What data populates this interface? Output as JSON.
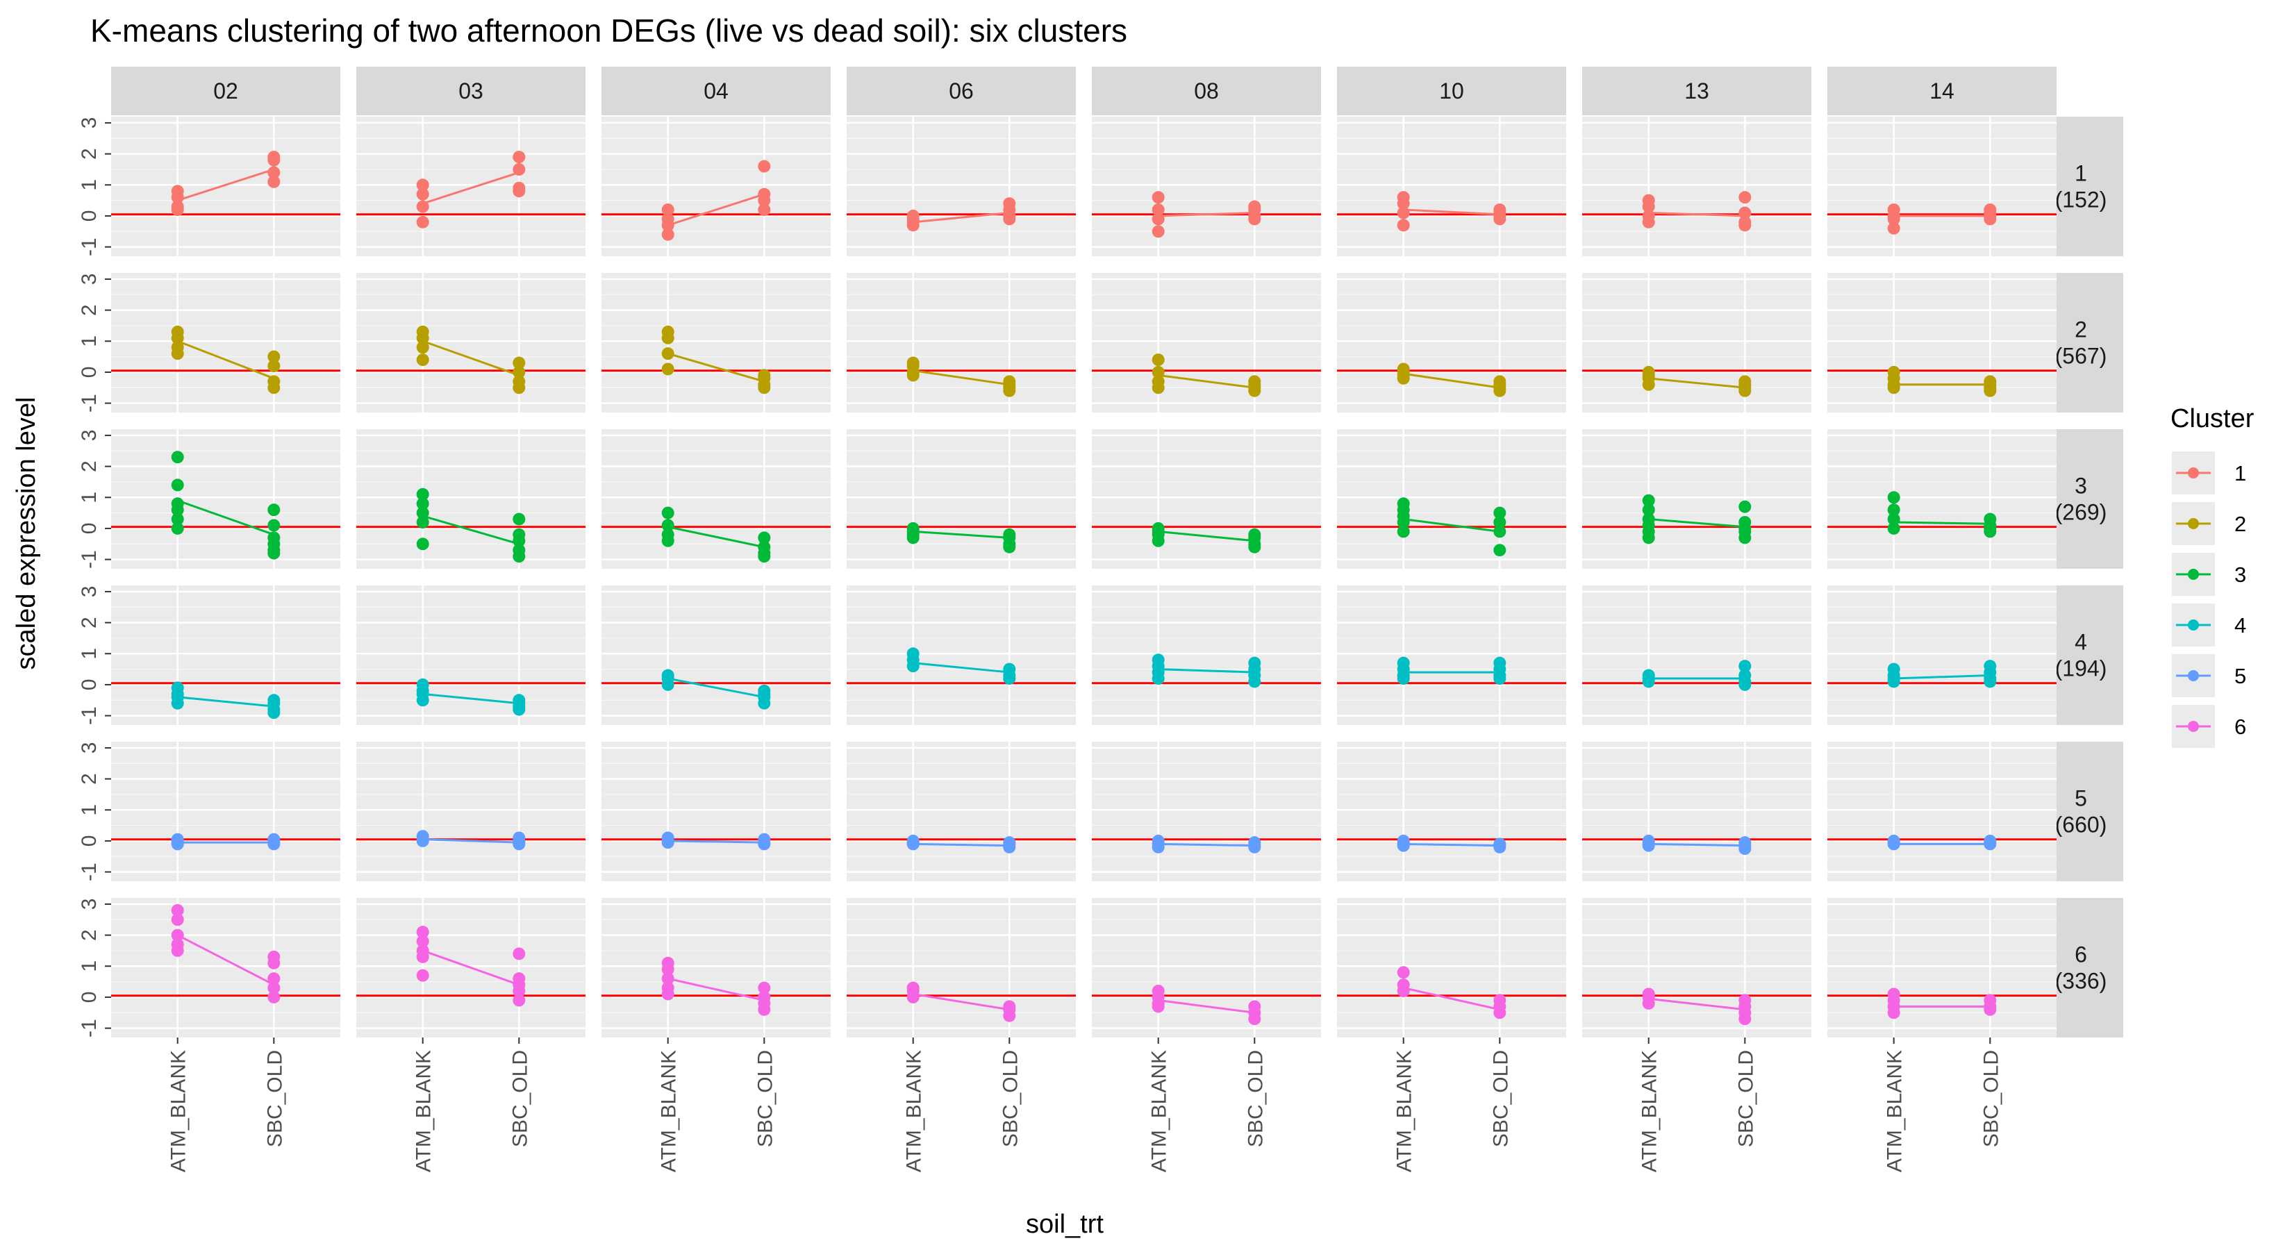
{
  "chart_data": {
    "type": "line",
    "title": "K-means clustering of two afternoon DEGs (live vs dead soil): six clusters",
    "xlabel": "soil_trt",
    "ylabel": "scaled expression level",
    "x_categories": [
      "ATM_BLANK",
      "SBC_OLD"
    ],
    "y_ticks": [
      -1,
      0,
      1,
      2,
      3
    ],
    "ylim": [
      -1.3,
      3.2
    ],
    "reference_line": {
      "y": 0.05,
      "color": "#ff0000"
    },
    "grid": true,
    "legend_position": "right",
    "column_facets": [
      "02",
      "03",
      "04",
      "06",
      "08",
      "10",
      "13",
      "14"
    ],
    "row_facets": [
      {
        "label": "1",
        "count": "(152)"
      },
      {
        "label": "2",
        "count": "(567)"
      },
      {
        "label": "3",
        "count": "(269)"
      },
      {
        "label": "4",
        "count": "(194)"
      },
      {
        "label": "5",
        "count": "(660)"
      },
      {
        "label": "6",
        "count": "(336)"
      }
    ],
    "legend": {
      "title": "Cluster",
      "items": [
        {
          "label": "1",
          "color": "#F8766D"
        },
        {
          "label": "2",
          "color": "#B79F00"
        },
        {
          "label": "3",
          "color": "#00BA38"
        },
        {
          "label": "4",
          "color": "#00BFC4"
        },
        {
          "label": "5",
          "color": "#619CFF"
        },
        {
          "label": "6",
          "color": "#F564E3"
        }
      ]
    },
    "cluster_means": [
      [
        [
          0.5,
          1.5
        ],
        [
          0.4,
          1.4
        ],
        [
          -0.3,
          0.7
        ],
        [
          -0.2,
          0.1
        ],
        [
          0.0,
          0.1
        ],
        [
          0.2,
          0.05
        ],
        [
          0.1,
          0.0
        ],
        [
          0.0,
          0.0
        ]
      ],
      [
        [
          1.0,
          -0.2
        ],
        [
          1.0,
          -0.1
        ],
        [
          0.6,
          -0.3
        ],
        [
          0.05,
          -0.4
        ],
        [
          -0.1,
          -0.5
        ],
        [
          -0.05,
          -0.5
        ],
        [
          -0.2,
          -0.5
        ],
        [
          -0.4,
          -0.4
        ]
      ],
      [
        [
          0.9,
          -0.2
        ],
        [
          0.4,
          -0.5
        ],
        [
          0.05,
          -0.6
        ],
        [
          -0.1,
          -0.3
        ],
        [
          -0.1,
          -0.4
        ],
        [
          0.3,
          -0.1
        ],
        [
          0.3,
          0.05
        ],
        [
          0.2,
          0.15
        ]
      ],
      [
        [
          -0.4,
          -0.7
        ],
        [
          -0.3,
          -0.6
        ],
        [
          0.2,
          -0.4
        ],
        [
          0.7,
          0.4
        ],
        [
          0.5,
          0.4
        ],
        [
          0.4,
          0.4
        ],
        [
          0.2,
          0.2
        ],
        [
          0.2,
          0.3
        ]
      ],
      [
        [
          -0.05,
          -0.05
        ],
        [
          0.05,
          -0.05
        ],
        [
          0.0,
          -0.05
        ],
        [
          -0.1,
          -0.15
        ],
        [
          -0.1,
          -0.15
        ],
        [
          -0.1,
          -0.15
        ],
        [
          -0.1,
          -0.15
        ],
        [
          -0.1,
          -0.1
        ]
      ],
      [
        [
          2.0,
          0.4
        ],
        [
          1.5,
          0.4
        ],
        [
          0.6,
          -0.1
        ],
        [
          0.1,
          -0.4
        ],
        [
          -0.1,
          -0.5
        ],
        [
          0.3,
          -0.4
        ],
        [
          -0.05,
          -0.4
        ],
        [
          -0.3,
          -0.3
        ]
      ]
    ],
    "cluster_points": [
      [
        [
          [
            0.8,
            0.6,
            0.3,
            0.2
          ],
          [
            1.9,
            1.8,
            1.4,
            1.1
          ]
        ],
        [
          [
            1.0,
            0.7,
            0.3,
            -0.2
          ],
          [
            1.9,
            1.5,
            0.9,
            0.8
          ]
        ],
        [
          [
            0.2,
            -0.1,
            -0.3,
            -0.6
          ],
          [
            1.6,
            0.7,
            0.5,
            0.2
          ]
        ],
        [
          [
            0.0,
            -0.1,
            -0.2,
            -0.3
          ],
          [
            0.4,
            0.2,
            0.0,
            -0.1
          ]
        ],
        [
          [
            0.6,
            0.2,
            -0.1,
            -0.5
          ],
          [
            0.3,
            0.2,
            0.0,
            -0.1
          ]
        ],
        [
          [
            0.6,
            0.4,
            0.1,
            -0.3
          ],
          [
            0.2,
            0.1,
            0.0,
            -0.1
          ]
        ],
        [
          [
            0.5,
            0.3,
            0.0,
            -0.2
          ],
          [
            0.6,
            0.1,
            -0.2,
            -0.3
          ]
        ],
        [
          [
            0.2,
            0.0,
            -0.1,
            -0.4
          ],
          [
            0.2,
            0.1,
            0.0,
            -0.1
          ]
        ]
      ],
      [
        [
          [
            1.3,
            1.1,
            0.8,
            0.6
          ],
          [
            0.5,
            0.2,
            -0.3,
            -0.5
          ]
        ],
        [
          [
            1.3,
            1.1,
            0.8,
            0.4
          ],
          [
            0.3,
            0.0,
            -0.3,
            -0.5
          ]
        ],
        [
          [
            1.3,
            1.1,
            0.6,
            0.1
          ],
          [
            -0.1,
            -0.2,
            -0.4,
            -0.5
          ]
        ],
        [
          [
            0.3,
            0.2,
            0.0,
            -0.1
          ],
          [
            -0.3,
            -0.4,
            -0.5,
            -0.6
          ]
        ],
        [
          [
            0.4,
            0.0,
            -0.3,
            -0.5
          ],
          [
            -0.3,
            -0.4,
            -0.5,
            -0.6
          ]
        ],
        [
          [
            0.1,
            0.0,
            -0.1,
            -0.2
          ],
          [
            -0.3,
            -0.4,
            -0.5,
            -0.6
          ]
        ],
        [
          [
            0.0,
            -0.1,
            -0.2,
            -0.4
          ],
          [
            -0.3,
            -0.4,
            -0.5,
            -0.6
          ]
        ],
        [
          [
            0.0,
            -0.2,
            -0.4,
            -0.5
          ],
          [
            -0.3,
            -0.4,
            -0.5,
            -0.6
          ]
        ]
      ],
      [
        [
          [
            2.3,
            1.4,
            0.8,
            0.6,
            0.3,
            0.0
          ],
          [
            0.6,
            0.1,
            -0.3,
            -0.5,
            -0.7,
            -0.8
          ]
        ],
        [
          [
            1.1,
            0.8,
            0.5,
            0.2,
            -0.5
          ],
          [
            0.3,
            -0.2,
            -0.4,
            -0.7,
            -0.9
          ]
        ],
        [
          [
            0.5,
            0.1,
            -0.2,
            -0.4
          ],
          [
            -0.3,
            -0.6,
            -0.8,
            -0.9
          ]
        ],
        [
          [
            0.0,
            -0.1,
            -0.2,
            -0.3
          ],
          [
            -0.2,
            -0.3,
            -0.5,
            -0.6
          ]
        ],
        [
          [
            0.0,
            -0.1,
            -0.2,
            -0.4
          ],
          [
            -0.2,
            -0.3,
            -0.5,
            -0.6
          ]
        ],
        [
          [
            0.8,
            0.6,
            0.4,
            0.2,
            -0.1
          ],
          [
            0.5,
            0.2,
            -0.1,
            -0.7
          ]
        ],
        [
          [
            0.9,
            0.6,
            0.3,
            0.1,
            -0.1,
            -0.3
          ],
          [
            0.7,
            0.2,
            0.0,
            -0.1,
            -0.3
          ]
        ],
        [
          [
            1.0,
            0.6,
            0.3,
            0.0
          ],
          [
            0.3,
            0.1,
            0.0,
            -0.1
          ]
        ]
      ],
      [
        [
          [
            -0.1,
            -0.3,
            -0.4,
            -0.6
          ],
          [
            -0.5,
            -0.6,
            -0.8,
            -0.9
          ]
        ],
        [
          [
            0.0,
            -0.2,
            -0.3,
            -0.5
          ],
          [
            -0.5,
            -0.6,
            -0.7,
            -0.8
          ]
        ],
        [
          [
            0.3,
            0.2,
            0.0
          ],
          [
            -0.2,
            -0.3,
            -0.4,
            -0.6
          ]
        ],
        [
          [
            1.0,
            0.8,
            0.6
          ],
          [
            0.5,
            0.3,
            0.2
          ]
        ],
        [
          [
            0.8,
            0.6,
            0.4,
            0.2
          ],
          [
            0.7,
            0.5,
            0.3,
            0.1
          ]
        ],
        [
          [
            0.7,
            0.5,
            0.3,
            0.2
          ],
          [
            0.7,
            0.5,
            0.3,
            0.2
          ]
        ],
        [
          [
            0.3,
            0.2,
            0.1
          ],
          [
            0.6,
            0.3,
            0.1,
            0.0
          ]
        ],
        [
          [
            0.5,
            0.3,
            0.2,
            0.1
          ],
          [
            0.6,
            0.4,
            0.2,
            0.1
          ]
        ]
      ],
      [
        [
          [
            0.05,
            0.0,
            -0.05,
            -0.1
          ],
          [
            0.05,
            0.0,
            -0.05,
            -0.1
          ]
        ],
        [
          [
            0.15,
            0.05,
            0.0
          ],
          [
            0.1,
            0.0,
            -0.05,
            -0.1
          ]
        ],
        [
          [
            0.1,
            0.0,
            -0.05
          ],
          [
            0.05,
            -0.05,
            -0.1
          ]
        ],
        [
          [
            0.0,
            -0.05,
            -0.1
          ],
          [
            -0.05,
            -0.1,
            -0.2
          ]
        ],
        [
          [
            0.0,
            -0.1,
            -0.2
          ],
          [
            -0.05,
            -0.15,
            -0.2
          ]
        ],
        [
          [
            0.0,
            -0.1,
            -0.15
          ],
          [
            -0.1,
            -0.15,
            -0.2
          ]
        ],
        [
          [
            0.0,
            -0.1,
            -0.15
          ],
          [
            -0.05,
            -0.15,
            -0.25
          ]
        ],
        [
          [
            0.0,
            -0.05,
            -0.1
          ],
          [
            0.0,
            -0.05,
            -0.1
          ]
        ]
      ],
      [
        [
          [
            2.8,
            2.5,
            2.0,
            1.7,
            1.5
          ],
          [
            1.3,
            1.1,
            0.6,
            0.3,
            0.0
          ]
        ],
        [
          [
            2.1,
            1.8,
            1.5,
            1.3,
            0.7
          ],
          [
            1.4,
            0.6,
            0.4,
            0.2,
            -0.1
          ]
        ],
        [
          [
            1.1,
            0.9,
            0.6,
            0.3,
            0.1
          ],
          [
            0.3,
            0.0,
            -0.2,
            -0.4
          ]
        ],
        [
          [
            0.3,
            0.2,
            0.0
          ],
          [
            -0.3,
            -0.4,
            -0.6
          ]
        ],
        [
          [
            0.2,
            0.0,
            -0.2,
            -0.3
          ],
          [
            -0.3,
            -0.5,
            -0.7
          ]
        ],
        [
          [
            0.8,
            0.4,
            0.2
          ],
          [
            -0.1,
            -0.3,
            -0.5
          ]
        ],
        [
          [
            0.1,
            0.0,
            -0.2
          ],
          [
            -0.1,
            -0.3,
            -0.5,
            -0.7
          ]
        ],
        [
          [
            0.1,
            -0.1,
            -0.3,
            -0.5
          ],
          [
            -0.1,
            -0.3,
            -0.4
          ]
        ]
      ]
    ]
  }
}
